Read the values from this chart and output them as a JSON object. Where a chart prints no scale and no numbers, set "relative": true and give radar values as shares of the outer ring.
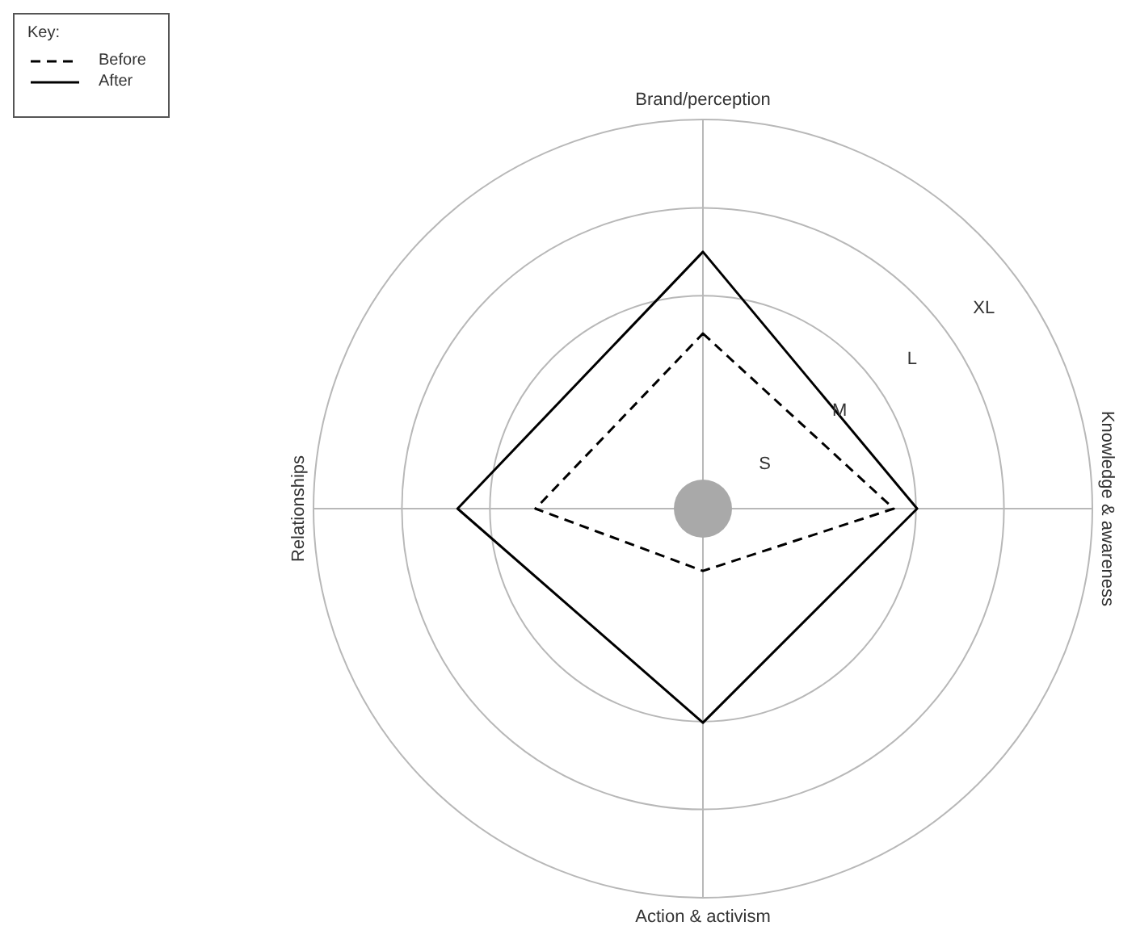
{
  "chart_data": {
    "type": "radar",
    "relative": true,
    "legend_title": "Key:",
    "legend": "top left",
    "grid": true,
    "marker": "none",
    "categories": [
      "Brand/perception",
      "Knowledge & awareness",
      "Action & activism",
      "Relationships"
    ],
    "annotations": [
      "S",
      "M",
      "L",
      "XL"
    ],
    "series": [
      {
        "name": "Before",
        "color": "#000000",
        "line_style": "dashed",
        "values": [
          0.45,
          0.49,
          0.16,
          0.43
        ]
      },
      {
        "name": "After",
        "color": "#000000",
        "line_style": "solid",
        "values": [
          0.66,
          0.55,
          0.55,
          0.63
        ]
      }
    ]
  }
}
